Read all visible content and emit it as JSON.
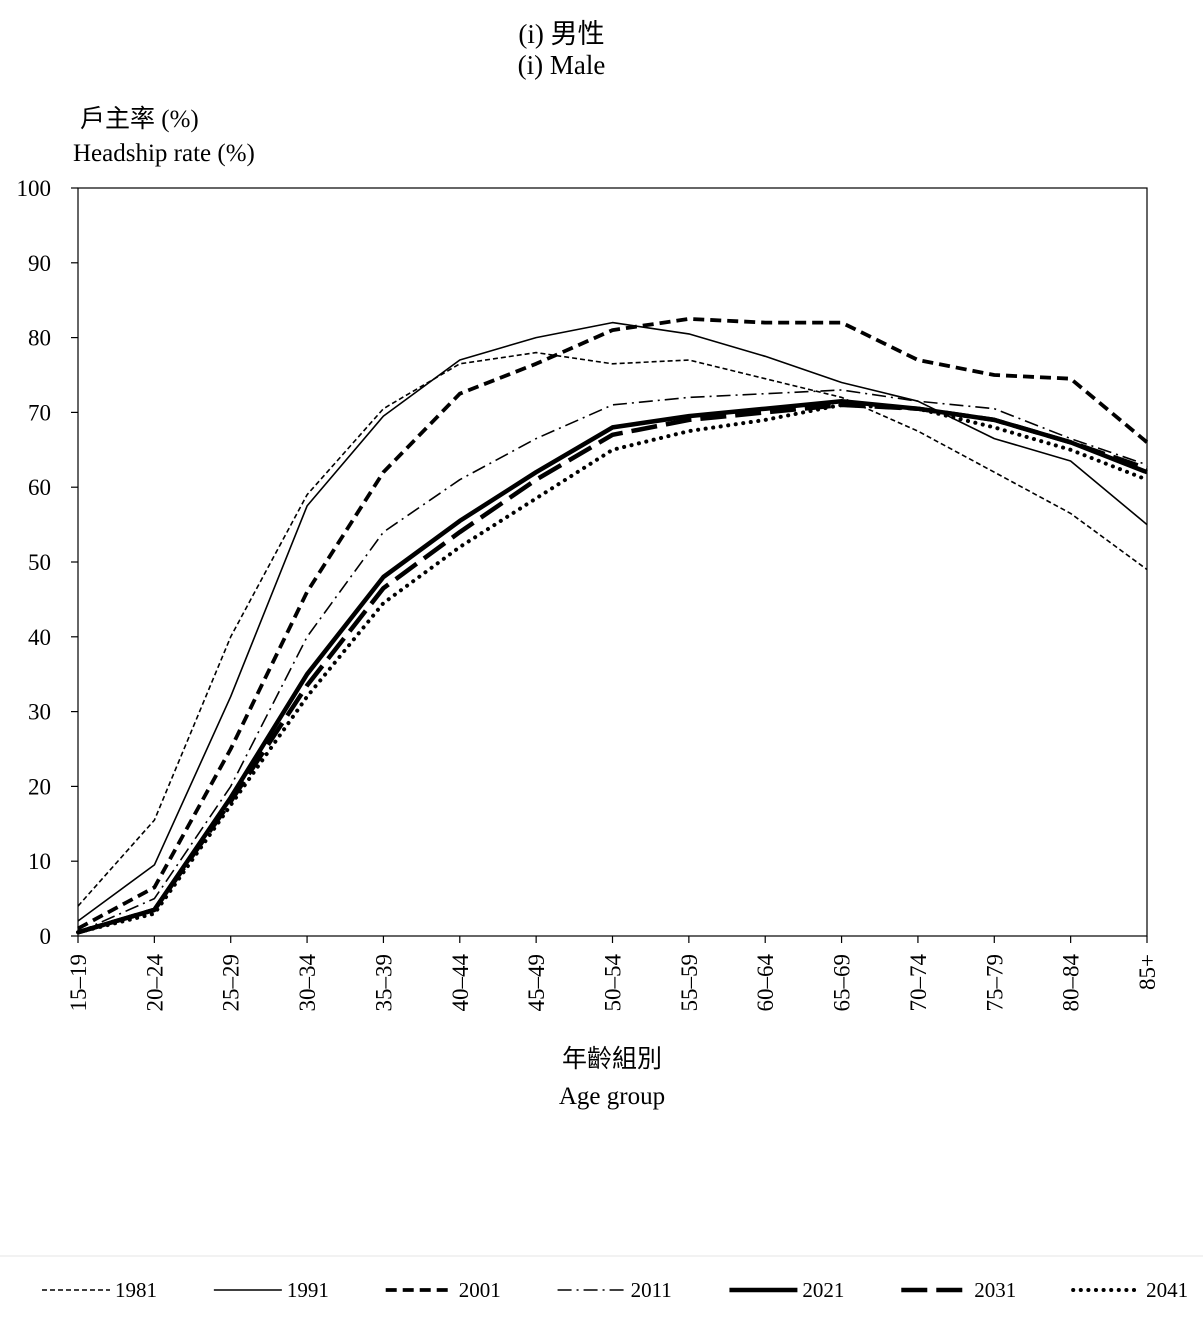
{
  "titles": {
    "line1": "(i)   男性",
    "line2": "(i)   Male"
  },
  "chart_data": {
    "type": "line",
    "ylabel_zh": "戶主率 (%)",
    "ylabel_en": "Headship rate (%)",
    "xlabel_zh": "年齡組別",
    "xlabel_en": "Age group",
    "ylim": [
      0,
      100
    ],
    "yticks": [
      0,
      10,
      20,
      30,
      40,
      50,
      60,
      70,
      80,
      90,
      100
    ],
    "categories": [
      "15–19",
      "20–24",
      "25–29",
      "30–34",
      "35–39",
      "40–44",
      "45–49",
      "50–54",
      "55–59",
      "60–64",
      "65–69",
      "70–74",
      "75–79",
      "80–84",
      "85+"
    ],
    "legend_position": "bottom",
    "series": [
      {
        "name": "1981",
        "style": "dash-fine",
        "values": [
          4,
          15.5,
          40,
          59,
          70.5,
          76.5,
          78,
          76.5,
          77,
          74.5,
          72,
          67.5,
          62,
          56.5,
          49
        ]
      },
      {
        "name": "1991",
        "style": "solid-thin",
        "values": [
          2,
          9.5,
          32,
          57.5,
          69.5,
          77,
          80,
          82,
          80.5,
          77.5,
          74,
          71.5,
          66.5,
          63.5,
          55
        ]
      },
      {
        "name": "2001",
        "style": "dash-bold",
        "values": [
          1,
          6.5,
          25,
          46,
          62,
          72.5,
          76.5,
          81,
          82.5,
          82,
          82,
          77,
          75,
          74.5,
          66
        ]
      },
      {
        "name": "2011",
        "style": "dash-dot",
        "values": [
          0.5,
          5,
          20,
          40,
          54,
          61,
          66.5,
          71,
          72,
          72.5,
          73,
          71.5,
          70.5,
          66.5,
          63
        ]
      },
      {
        "name": "2021",
        "style": "solid-bold",
        "values": [
          0.5,
          3.5,
          18.5,
          35,
          48,
          55.5,
          62,
          68,
          69.5,
          70.5,
          71.5,
          70.5,
          69,
          66,
          62
        ]
      },
      {
        "name": "2031",
        "style": "long-dash-bold",
        "values": [
          0.5,
          3.5,
          18,
          33.5,
          46.5,
          54,
          61,
          67,
          69,
          70,
          71,
          70.5,
          69,
          66,
          62.5
        ]
      },
      {
        "name": "2041",
        "style": "dotted",
        "values": [
          0.5,
          3,
          17.5,
          32,
          44.5,
          52,
          58.5,
          65,
          67.5,
          69,
          71,
          70.5,
          68,
          65,
          61
        ]
      }
    ]
  }
}
